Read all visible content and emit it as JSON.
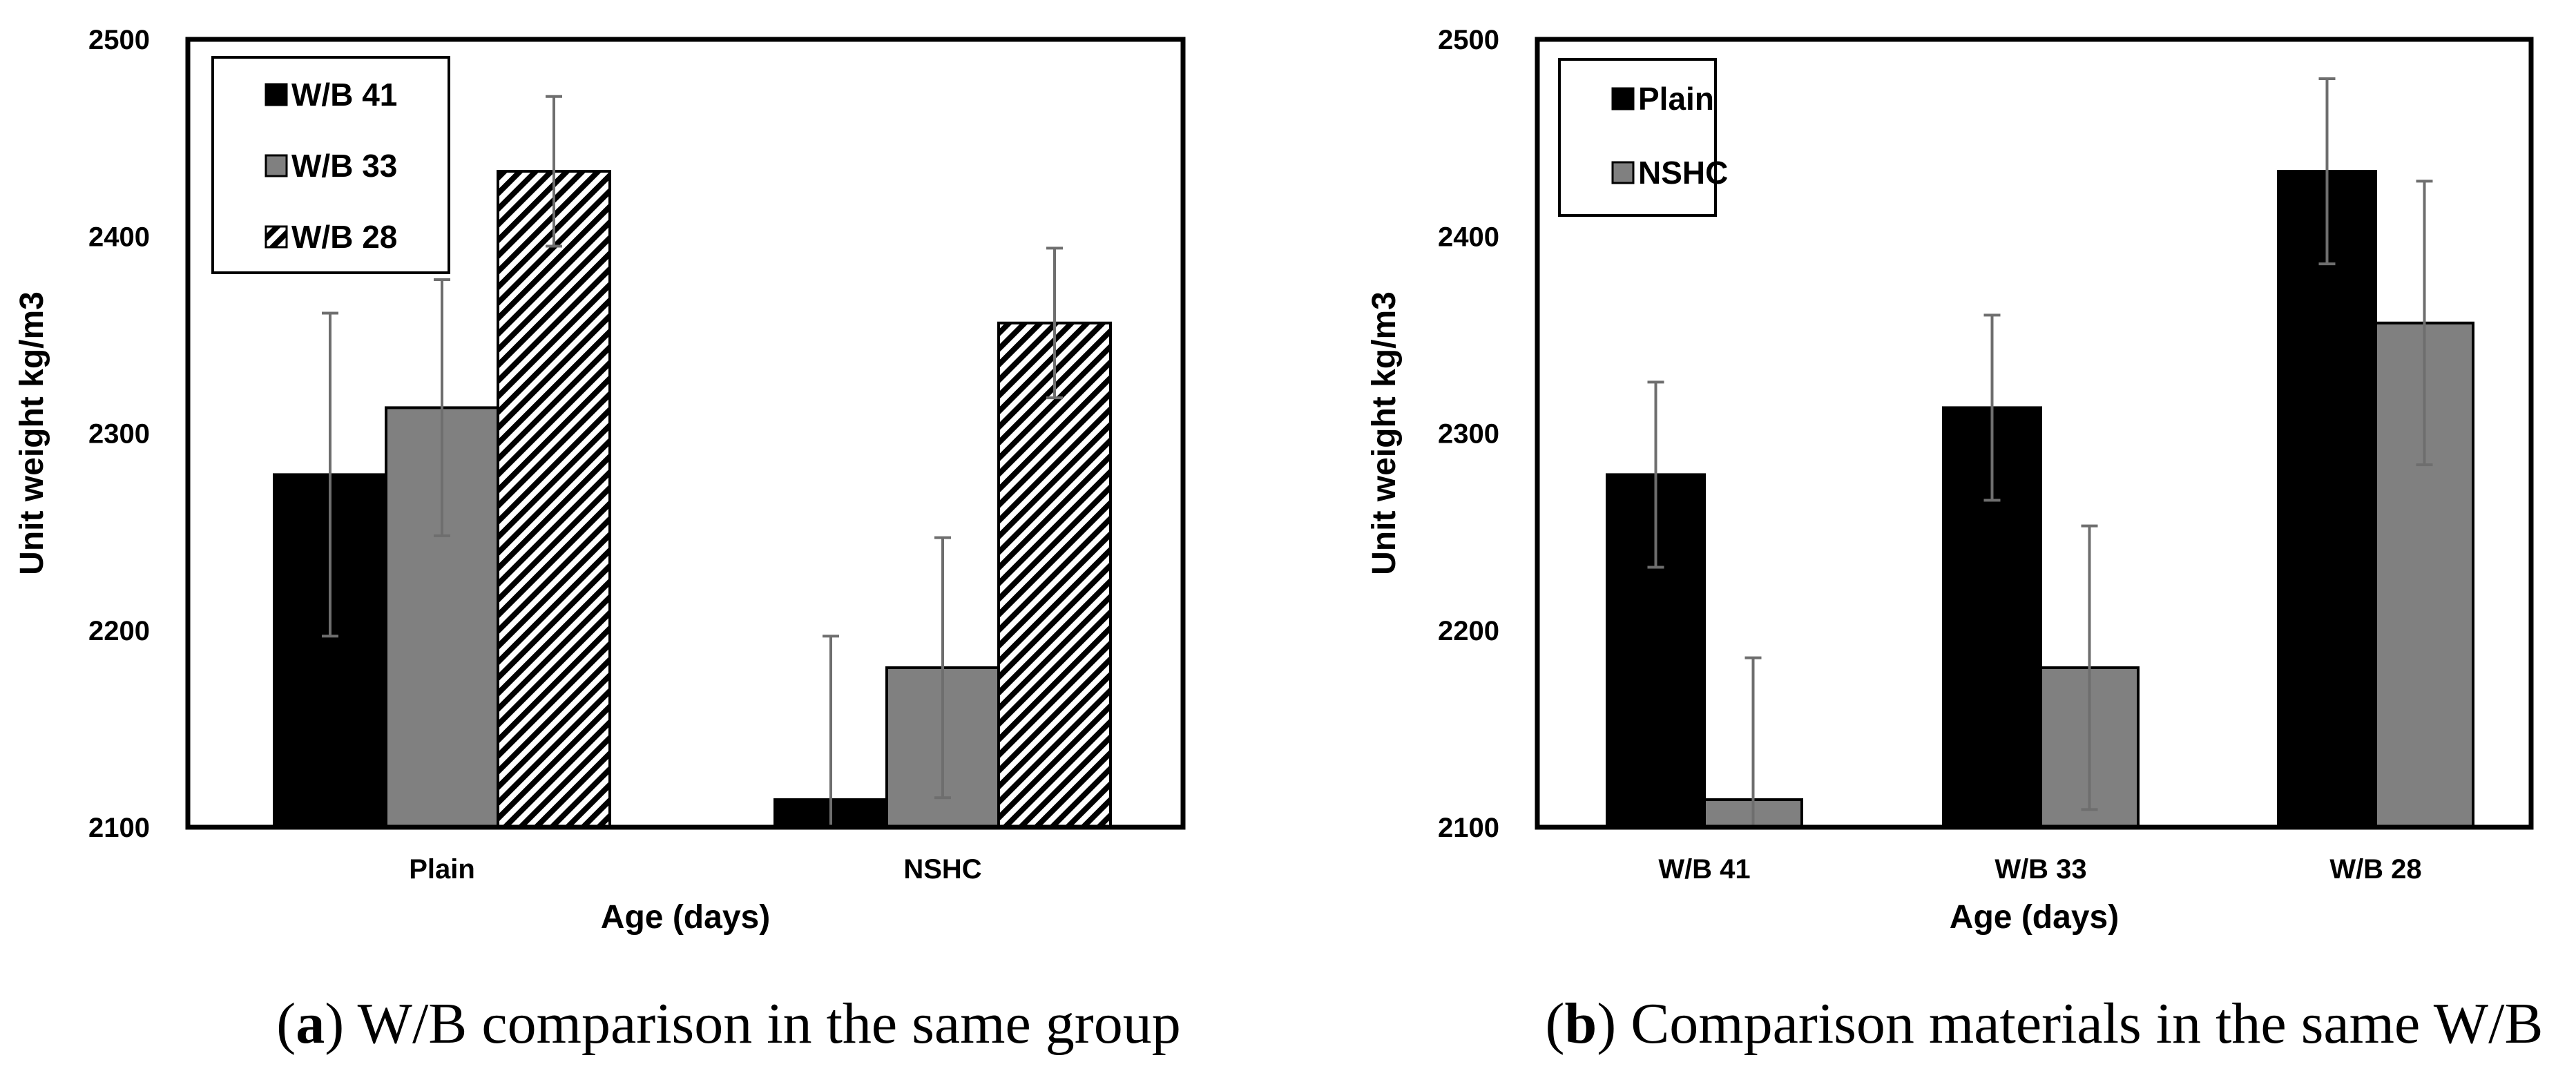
{
  "colors": {
    "series_black": "#000000",
    "series_gray": "#808080",
    "error_bar": "#6e6e6e"
  },
  "chart_data": [
    {
      "type": "bar",
      "categories": [
        "Plain",
        "NSHC"
      ],
      "series": [
        {
          "name": "W/B 41",
          "fill": "black",
          "values": [
            2279,
            2114
          ],
          "errors": [
            82,
            83
          ]
        },
        {
          "name": "W/B 33",
          "fill": "gray",
          "values": [
            2313,
            2181
          ],
          "errors": [
            65,
            66
          ]
        },
        {
          "name": "W/B 28",
          "fill": "hatch",
          "values": [
            2433,
            2356
          ],
          "errors": [
            38,
            38
          ]
        }
      ],
      "xlabel": "Age (days)",
      "ylabel": "Unit weight kg/m3",
      "ylim": [
        2100,
        2500
      ],
      "yticks": [
        2100,
        2200,
        2300,
        2400,
        2500
      ],
      "grid": false,
      "legend_position": "top-left",
      "caption_letter": "a",
      "caption_open": "(",
      "caption_close": ")",
      "caption_text": " W/B comparison in the same group"
    },
    {
      "type": "bar",
      "categories": [
        "W/B 41",
        "W/B 33",
        "W/B 28"
      ],
      "series": [
        {
          "name": "Plain",
          "fill": "black",
          "values": [
            2279,
            2313,
            2433
          ],
          "errors": [
            47,
            47,
            47
          ]
        },
        {
          "name": "NSHC",
          "fill": "gray",
          "values": [
            2114,
            2181,
            2356
          ],
          "errors": [
            72,
            72,
            72
          ]
        }
      ],
      "xlabel": "Age (days)",
      "ylabel": "Unit weight kg/m3",
      "ylim": [
        2100,
        2500
      ],
      "yticks": [
        2100,
        2200,
        2300,
        2400,
        2500
      ],
      "grid": false,
      "legend_position": "top-left",
      "caption_letter": "b",
      "caption_open": "(",
      "caption_close": ")",
      "caption_text": " Comparison materials in the same W/B"
    }
  ]
}
